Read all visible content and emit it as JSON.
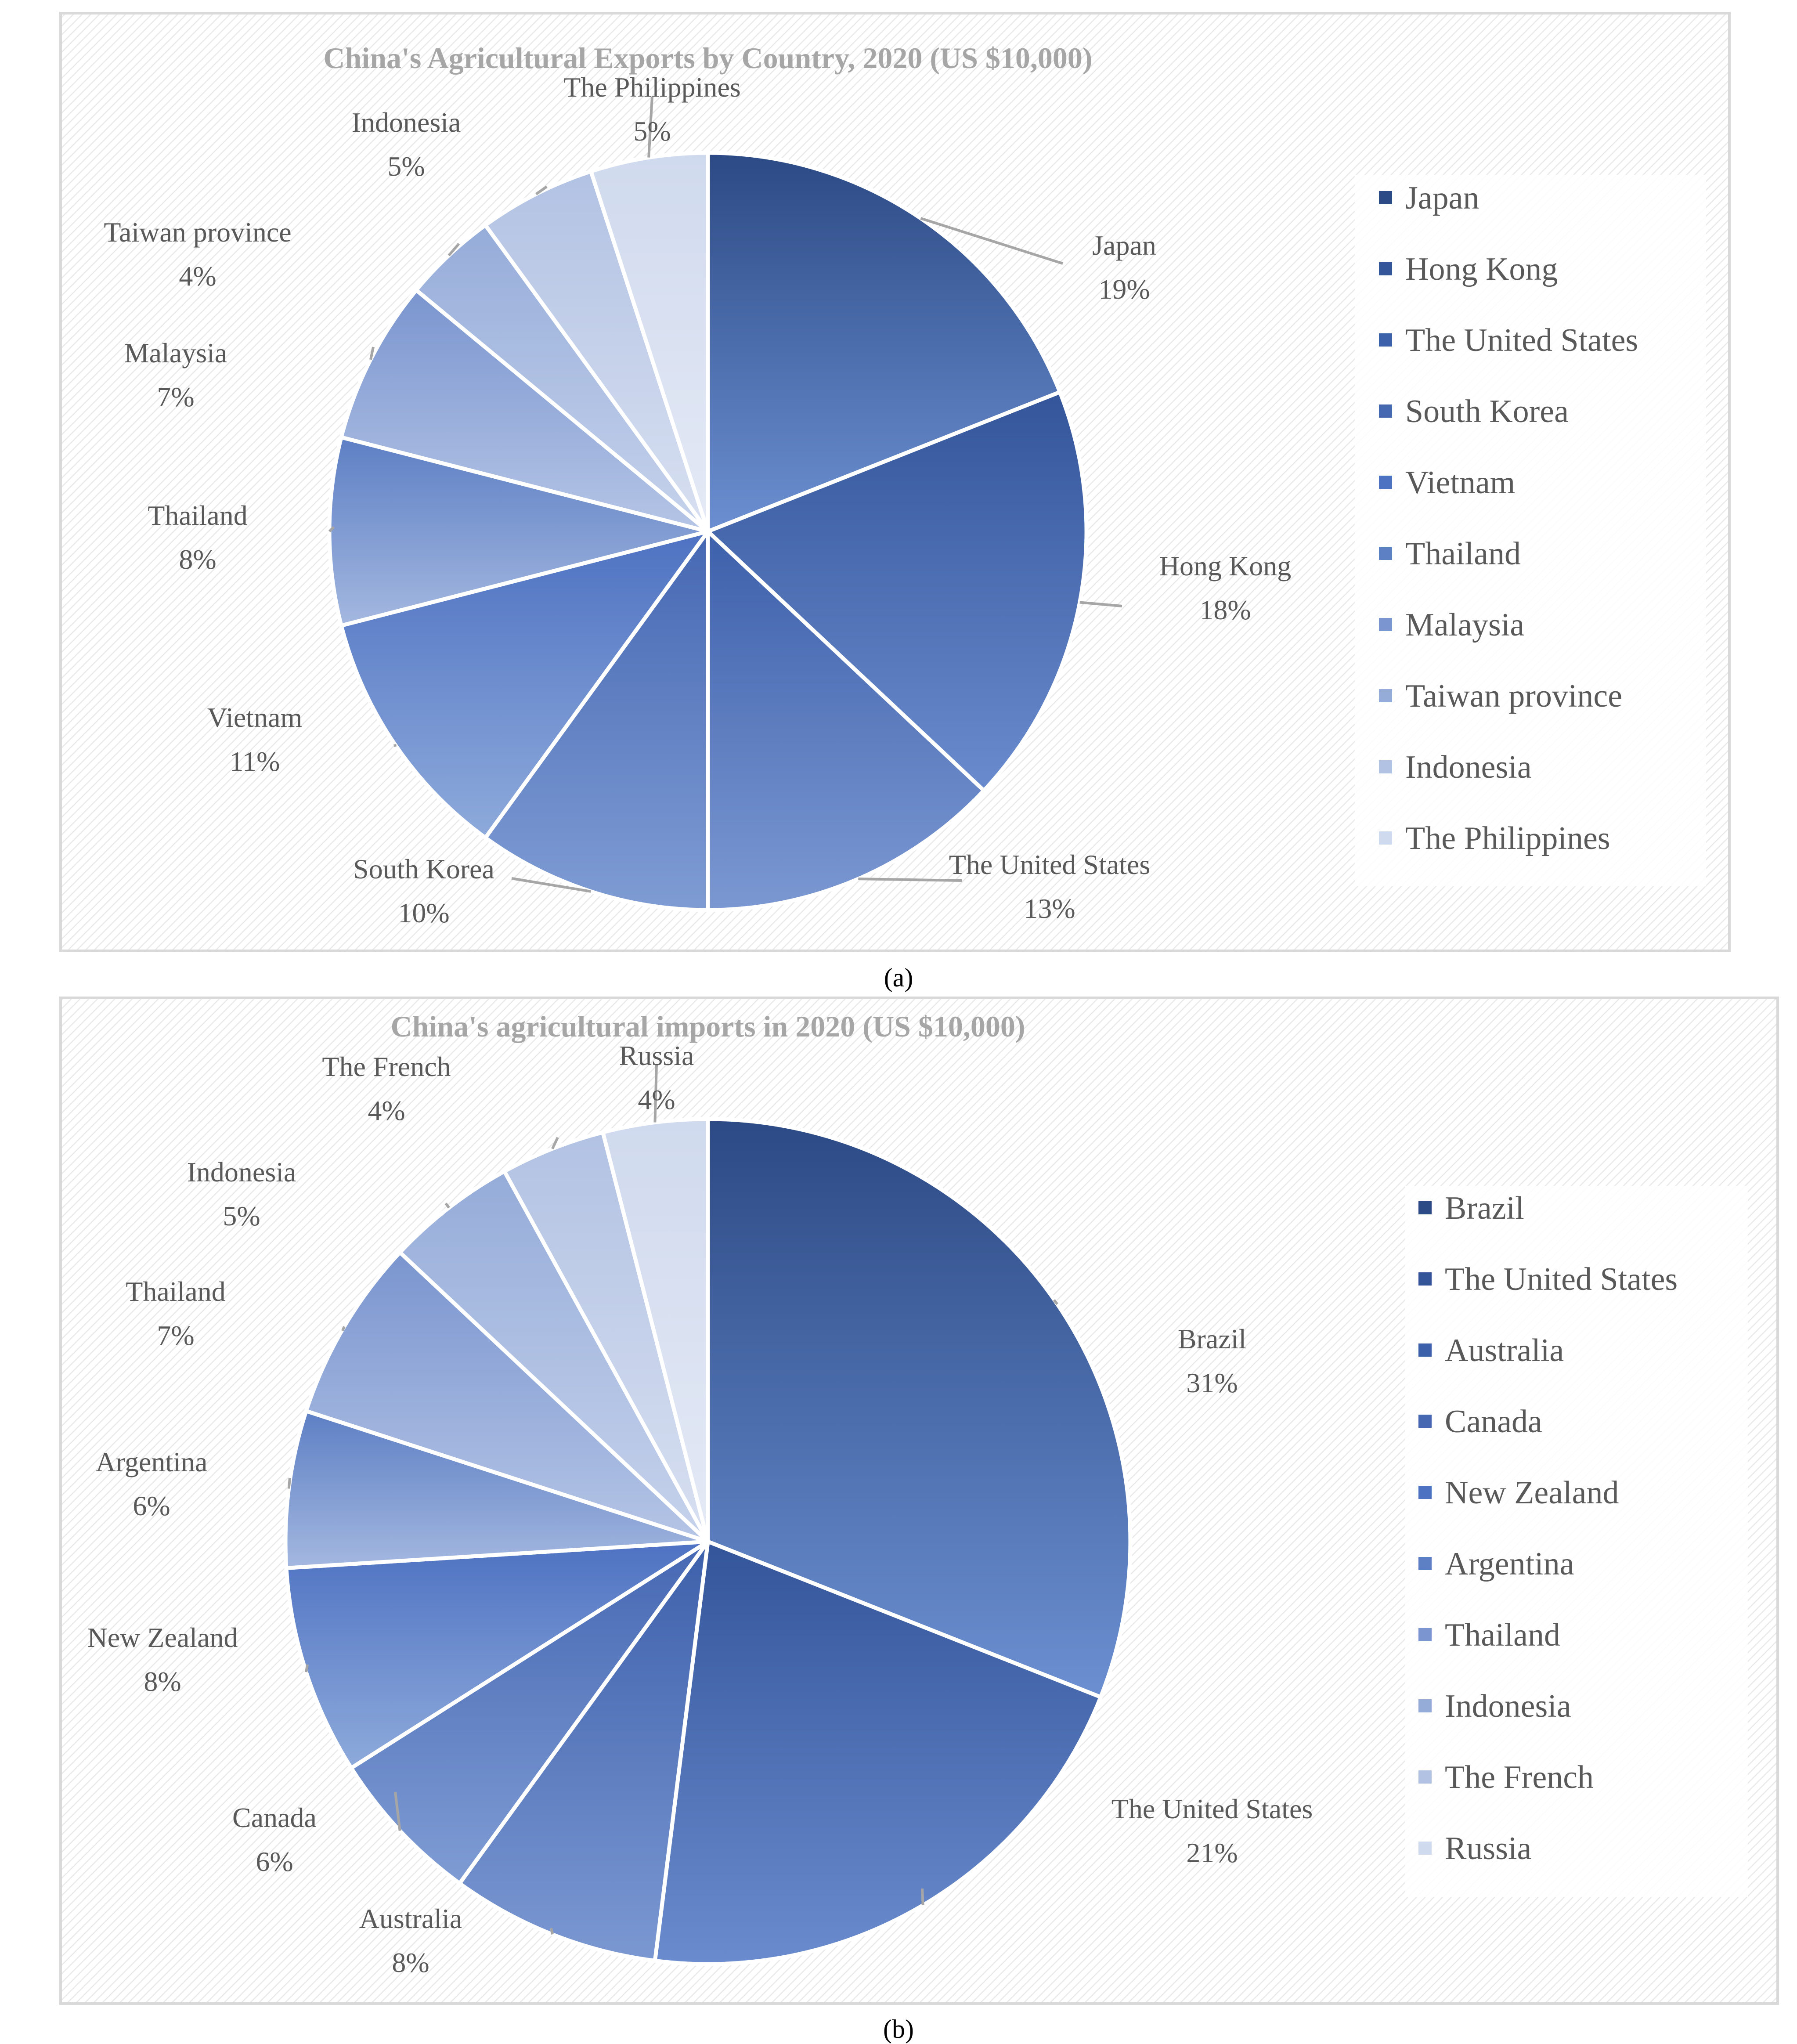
{
  "colors": {
    "palette_dark": [
      "#2c4a85",
      "#34559a",
      "#3d60ab",
      "#4668b3",
      "#4e72c2",
      "#5d7fc4",
      "#7a95cf",
      "#95acd9",
      "#b2c2e3",
      "#d0daee"
    ],
    "palette_light": [
      "#6b8fd1",
      "#6a8cce",
      "#7b98d2",
      "#7f9cd4",
      "#8eaadb",
      "#a4b8e0",
      "#b5c5e6",
      "#c7d3ec",
      "#d8e0f1",
      "#e4e9f5"
    ],
    "title": "#a6a6a6",
    "label": "#595959",
    "leader": "#a6a6a6",
    "panel_border": "#d9d9d9"
  },
  "captions": {
    "a": "(a)",
    "b": "(b)"
  },
  "chart_data": [
    {
      "type": "pie",
      "title": "China's Agricultural Exports by Country, 2020 (US $10,000)",
      "categories": [
        "Japan",
        "Hong Kong",
        "The United States",
        "South Korea",
        "Vietnam",
        "Thailand",
        "Malaysia",
        "Taiwan province",
        "Indonesia",
        "The Philippines"
      ],
      "values": [
        19,
        18,
        13,
        10,
        11,
        8,
        7,
        4,
        5,
        5
      ],
      "labels": [
        "19%",
        "18%",
        "13%",
        "10%",
        "11%",
        "8%",
        "7%",
        "4%",
        "5%",
        "5%"
      ],
      "legend_position": "right"
    },
    {
      "type": "pie",
      "title": "China's agricultural imports in 2020 (US $10,000)",
      "categories": [
        "Brazil",
        "The United States",
        "Australia",
        "Canada",
        "New Zealand",
        "Argentina",
        "Thailand",
        "Indonesia",
        "The French",
        "Russia"
      ],
      "values": [
        31,
        21,
        8,
        6,
        8,
        6,
        7,
        5,
        4,
        4
      ],
      "labels": [
        "31%",
        "21%",
        "8%",
        "6%",
        "8%",
        "6%",
        "7%",
        "5%",
        "4%",
        "4%"
      ],
      "legend_position": "right"
    }
  ]
}
